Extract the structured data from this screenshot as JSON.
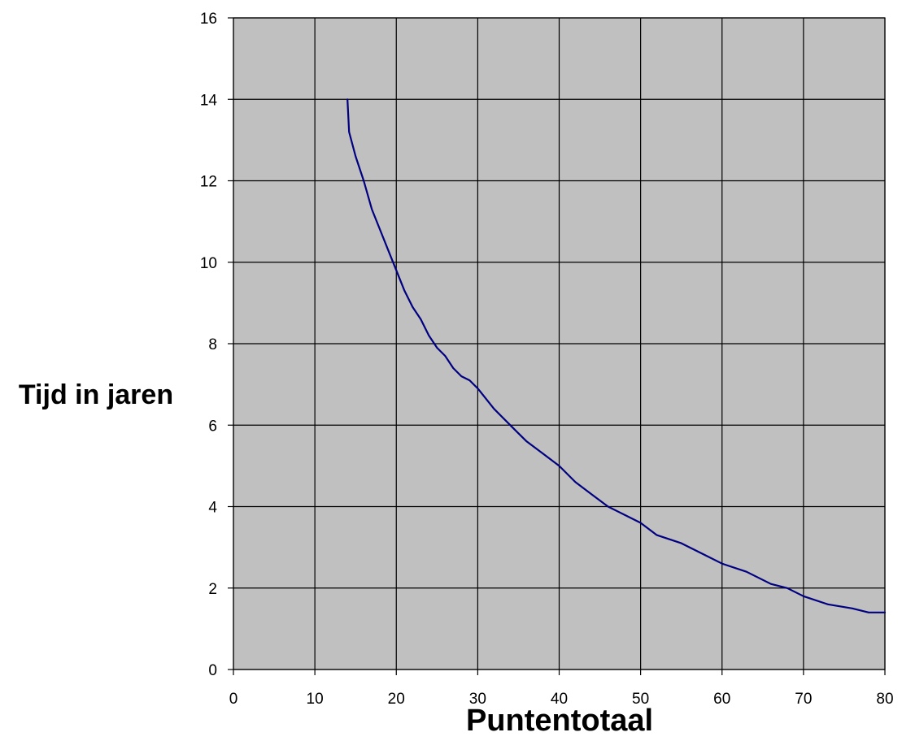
{
  "chart_data": {
    "type": "line",
    "title": "",
    "xlabel": "Puntentotaal",
    "ylabel": "Tijd in jaren",
    "xlim": [
      0,
      80
    ],
    "ylim": [
      0,
      16
    ],
    "x_ticks": [
      "0",
      "10",
      "20",
      "30",
      "40",
      "50",
      "60",
      "70",
      "80"
    ],
    "y_ticks": [
      "0",
      "2",
      "4",
      "6",
      "8",
      "10",
      "12",
      "14",
      "16"
    ],
    "grid": true,
    "legend": "none",
    "colors": {
      "plot_background": "#c0c0c0",
      "grid": "#000000",
      "line": "#000080"
    },
    "series": [
      {
        "x": [
          14,
          14.2,
          15,
          16,
          17,
          18,
          19,
          20,
          21,
          22,
          23,
          24,
          25,
          26,
          27,
          28,
          29,
          30,
          32,
          34,
          35,
          36,
          38,
          40,
          42,
          44,
          46,
          48,
          50,
          52,
          55,
          58,
          60,
          63,
          66,
          68,
          70,
          73,
          76,
          78,
          80
        ],
        "y": [
          14,
          13.2,
          12.6,
          12.0,
          11.3,
          10.8,
          10.3,
          9.8,
          9.3,
          8.9,
          8.6,
          8.2,
          7.9,
          7.7,
          7.4,
          7.2,
          7.1,
          6.9,
          6.4,
          6.0,
          5.8,
          5.6,
          5.3,
          5.0,
          4.6,
          4.3,
          4.0,
          3.8,
          3.6,
          3.3,
          3.1,
          2.8,
          2.6,
          2.4,
          2.1,
          2.0,
          1.8,
          1.6,
          1.5,
          1.4,
          1.4
        ]
      }
    ]
  }
}
